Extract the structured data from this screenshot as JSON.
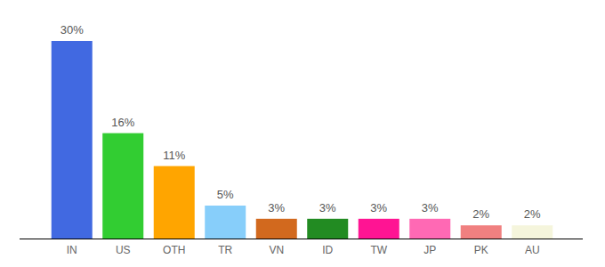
{
  "chart_data": {
    "type": "bar",
    "categories": [
      "IN",
      "US",
      "OTH",
      "TR",
      "VN",
      "ID",
      "TW",
      "JP",
      "PK",
      "AU"
    ],
    "values": [
      30,
      16,
      11,
      5,
      3,
      3,
      3,
      3,
      2,
      2
    ],
    "value_labels": [
      "30%",
      "16%",
      "11%",
      "5%",
      "3%",
      "3%",
      "3%",
      "3%",
      "2%",
      "2%"
    ],
    "colors": [
      "#4169e1",
      "#32cd32",
      "#ffa500",
      "#87cefa",
      "#d2691e",
      "#228b22",
      "#ff1493",
      "#ff69b4",
      "#f08080",
      "#f5f5dc"
    ],
    "ylim": [
      0,
      30
    ],
    "data_labels": true,
    "tick_labels": "x",
    "grid": false
  }
}
